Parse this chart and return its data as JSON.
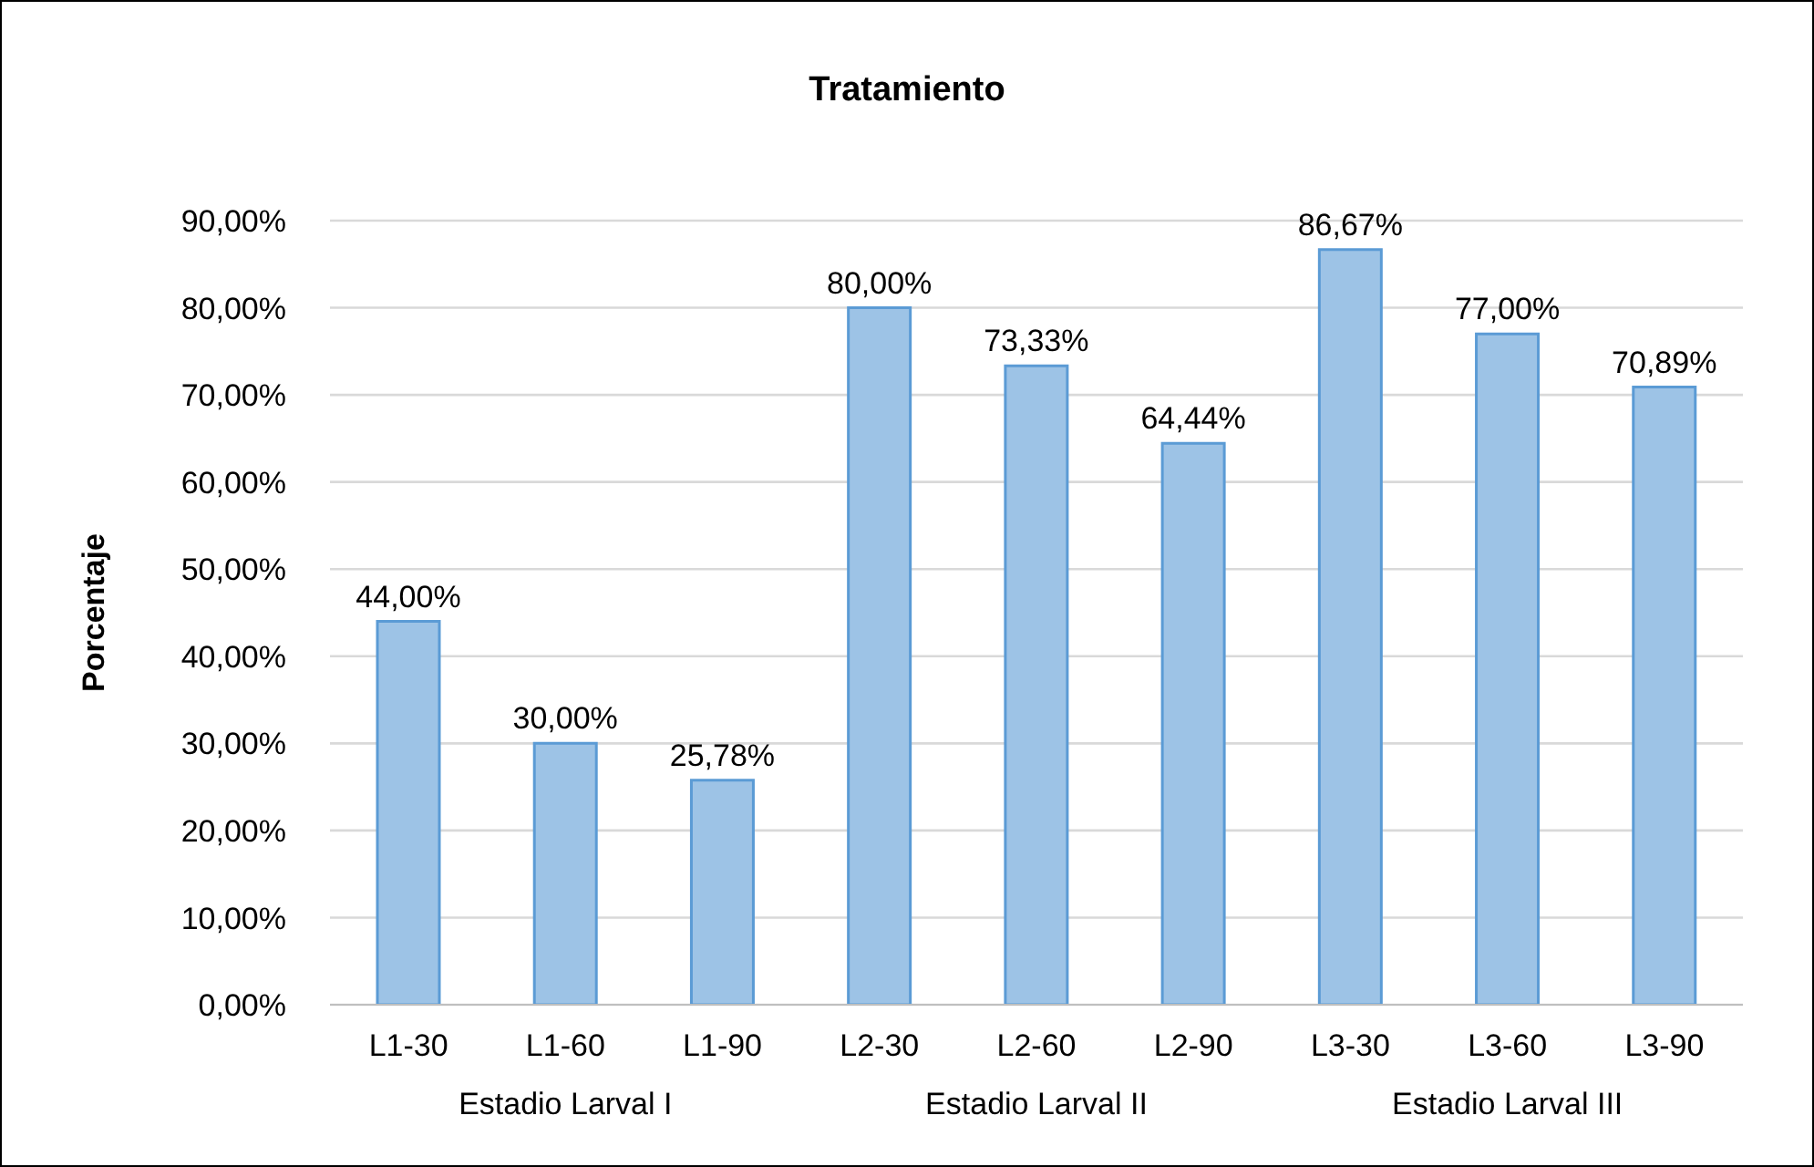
{
  "chart_data": {
    "type": "bar",
    "title": "Tratamiento",
    "ylabel": "Porcentaje",
    "categories": [
      "L1-30",
      "L1-60",
      "L1-90",
      "L2-30",
      "L2-60",
      "L2-90",
      "L3-30",
      "L3-60",
      "L3-90"
    ],
    "values": [
      44,
      30,
      25.78,
      80,
      73.33,
      64.44,
      86.67,
      77,
      70.89
    ],
    "value_labels": [
      "44,00%",
      "30,00%",
      "25,78%",
      "80,00%",
      "73,33%",
      "64,44%",
      "86,67%",
      "77,00%",
      "70,89%"
    ],
    "color": "#9dc3e6",
    "ylim": [
      0,
      90
    ],
    "yticks": [
      {
        "value": 0,
        "label": "0,00%"
      },
      {
        "value": 10,
        "label": "10,00%"
      },
      {
        "value": 20,
        "label": "20,00%"
      },
      {
        "value": 30,
        "label": "30,00%"
      },
      {
        "value": 40,
        "label": "40,00%"
      },
      {
        "value": 50,
        "label": "50,00%"
      },
      {
        "value": 60,
        "label": "60,00%"
      },
      {
        "value": 70,
        "label": "70,00%"
      },
      {
        "value": 80,
        "label": "80,00%"
      },
      {
        "value": 90,
        "label": "90,00%"
      }
    ],
    "grid": "y",
    "annotations": [
      "Estadio Larval I",
      "Estadio Larval II",
      "Estadio Larval III"
    ]
  }
}
